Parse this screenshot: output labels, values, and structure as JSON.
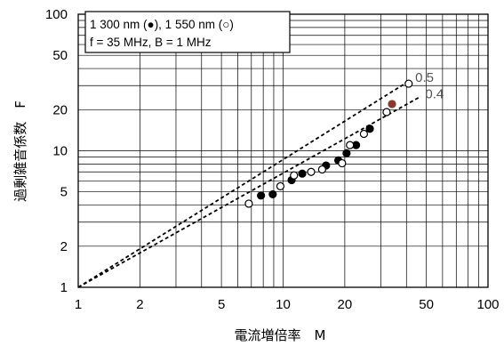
{
  "chart_data": {
    "type": "scatter",
    "title": "",
    "xlabel": "電流増倍率　M",
    "ylabel": "過剰雑音係数　F",
    "x_scale": "log",
    "y_scale": "log",
    "xlim": [
      1,
      100
    ],
    "ylim": [
      1,
      100
    ],
    "x_ticks": [
      "1",
      "2",
      "5",
      "10",
      "20",
      "50",
      "100"
    ],
    "x_tick_values": [
      1,
      2,
      5,
      10,
      20,
      50,
      100
    ],
    "y_ticks": [
      "1",
      "2",
      "5",
      "10",
      "20",
      "50",
      "100"
    ],
    "y_tick_values": [
      1,
      2,
      5,
      10,
      20,
      50,
      100
    ],
    "grid": true,
    "legend": {
      "placement": "top-left",
      "line1": "1 300 nm (●), 1 550 nm (○)",
      "line2": "f = 35 MHz, B = 1 MHz"
    },
    "series": [
      {
        "name": "1 300 nm (●)",
        "marker": "filled-circle",
        "points": [
          [
            7.8,
            4.7
          ],
          [
            8.9,
            4.8
          ],
          [
            11.0,
            6.1
          ],
          [
            12.4,
            6.8
          ],
          [
            16.2,
            7.8
          ],
          [
            18.6,
            8.5
          ],
          [
            20.4,
            9.6
          ],
          [
            22.7,
            11.0
          ],
          [
            26.5,
            14.5
          ],
          [
            34.0,
            22.0
          ]
        ]
      },
      {
        "name": "1 550 nm (○)",
        "marker": "open-circle",
        "points": [
          [
            6.8,
            4.1
          ],
          [
            9.7,
            5.5
          ],
          [
            11.3,
            6.6
          ],
          [
            13.7,
            7.0
          ],
          [
            15.5,
            7.3
          ],
          [
            19.4,
            8.1
          ],
          [
            21.2,
            11.0
          ],
          [
            24.8,
            13.3
          ],
          [
            32.0,
            19.2
          ],
          [
            41.0,
            31.0
          ]
        ]
      }
    ],
    "reference_lines": [
      {
        "label": "0.5",
        "x_end": 42,
        "y_end": 33
      },
      {
        "label": "0.4",
        "x_end": 47,
        "y_end": 25
      }
    ]
  },
  "style": {
    "grid_color": "#000000",
    "curve_color": "#000000",
    "highlight_marker_color": "#8b3a2a"
  }
}
